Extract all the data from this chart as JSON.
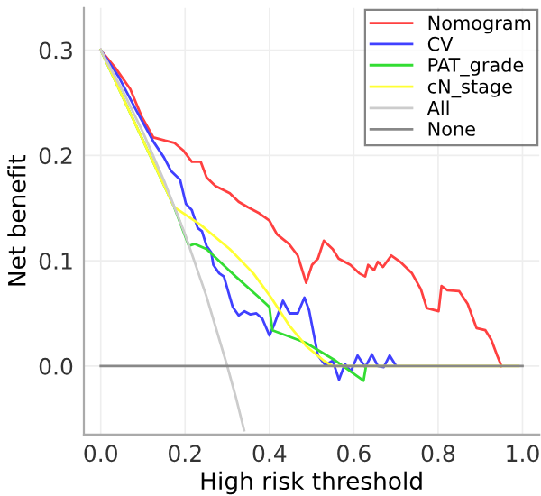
{
  "chart_data": {
    "type": "line",
    "xlabel": "High risk threshold",
    "ylabel": "Net benefit",
    "xlim": [
      -0.04,
      1.04
    ],
    "ylim": [
      -0.065,
      0.34
    ],
    "xticks": [
      {
        "value": 0,
        "label": "0.0"
      },
      0.2,
      0.4,
      0.6,
      0.8,
      {
        "value": 1,
        "label": "1.0"
      }
    ],
    "yticks": [
      {
        "value": 0,
        "label": "0.0"
      },
      0.1,
      0.2,
      0.3
    ],
    "grid": true,
    "legend": "top right",
    "marker": "none",
    "line_style": "solid",
    "series": [
      {
        "name": "Nomogram",
        "color": "#ff4040",
        "x": [
          0,
          0.035,
          0.07,
          0.097,
          0.125,
          0.153,
          0.174,
          0.195,
          0.216,
          0.237,
          0.251,
          0.272,
          0.306,
          0.327,
          0.348,
          0.376,
          0.4,
          0.418,
          0.446,
          0.467,
          0.487,
          0.501,
          0.515,
          0.529,
          0.55,
          0.564,
          0.592,
          0.613,
          0.627,
          0.634,
          0.648,
          0.657,
          0.669,
          0.689,
          0.71,
          0.738,
          0.759,
          0.773,
          0.801,
          0.808,
          0.822,
          0.85,
          0.87,
          0.891,
          0.912,
          0.926,
          0.94,
          0.95
        ],
        "values": [
          0.3,
          0.283,
          0.263,
          0.237,
          0.217,
          0.214,
          0.212,
          0.205,
          0.194,
          0.194,
          0.179,
          0.171,
          0.164,
          0.156,
          0.151,
          0.145,
          0.138,
          0.125,
          0.116,
          0.105,
          0.079,
          0.096,
          0.102,
          0.119,
          0.111,
          0.102,
          0.096,
          0.088,
          0.085,
          0.096,
          0.091,
          0.099,
          0.094,
          0.105,
          0.099,
          0.088,
          0.073,
          0.055,
          0.052,
          0.076,
          0.072,
          0.071,
          0.059,
          0.036,
          0.034,
          0.025,
          0.01,
          0
        ]
      },
      {
        "name": "CV",
        "color": "#4040ff",
        "x": [
          0,
          0.042,
          0.084,
          0.125,
          0.15,
          0.167,
          0.188,
          0.202,
          0.216,
          0.23,
          0.24,
          0.251,
          0.262,
          0.267,
          0.281,
          0.292,
          0.313,
          0.327,
          0.341,
          0.355,
          0.369,
          0.383,
          0.4,
          0.411,
          0.432,
          0.448,
          0.467,
          0.483,
          0.494,
          0.515,
          0.532,
          0.55,
          0.565,
          0.579,
          0.593,
          0.609,
          0.627,
          0.643,
          0.657,
          0.671,
          0.685,
          0.699
        ],
        "values": [
          0.3,
          0.275,
          0.243,
          0.213,
          0.198,
          0.185,
          0.177,
          0.154,
          0.148,
          0.131,
          0.128,
          0.114,
          0.108,
          0.096,
          0.088,
          0.085,
          0.056,
          0.048,
          0.052,
          0.049,
          0.05,
          0.045,
          0.029,
          0.039,
          0.062,
          0.05,
          0.05,
          0.065,
          0.053,
          0.01,
          0.001,
          0.005,
          -0.013,
          0.002,
          -0.005,
          0.01,
          -0.001,
          0.011,
          0,
          -0.001,
          0.01,
          0.001
        ]
      },
      {
        "name": "PAT_grade",
        "color": "#33dd33",
        "x": [
          0,
          0.174,
          0.209,
          0.223,
          0.251,
          0.32,
          0.376,
          0.4,
          0.407,
          0.487,
          0.557,
          0.623,
          0.629
        ],
        "values": [
          0.3,
          0.151,
          0.114,
          0.116,
          0.111,
          0.085,
          0.065,
          0.056,
          0.034,
          0.022,
          0.005,
          -0.014,
          0
        ]
      },
      {
        "name": "cN_stage",
        "color": "#ffff33",
        "x": [
          0,
          0.174,
          0.237,
          0.306,
          0.362,
          0.404,
          0.446,
          0.487,
          0.529,
          0.55,
          0.99
        ],
        "values": [
          0.3,
          0.151,
          0.134,
          0.111,
          0.088,
          0.065,
          0.039,
          0.019,
          0.005,
          0,
          0
        ]
      },
      {
        "name": "All",
        "color": "#cccccc",
        "x": [
          0,
          0.05,
          0.1,
          0.15,
          0.2,
          0.25,
          0.3,
          0.32,
          0.34
        ],
        "values": [
          0.3,
          0.263,
          0.222,
          0.176,
          0.125,
          0.067,
          0,
          -0.029,
          -0.061
        ]
      },
      {
        "name": "None",
        "color": "#888888",
        "x": [
          0,
          1
        ],
        "values": [
          0,
          0
        ]
      }
    ]
  }
}
